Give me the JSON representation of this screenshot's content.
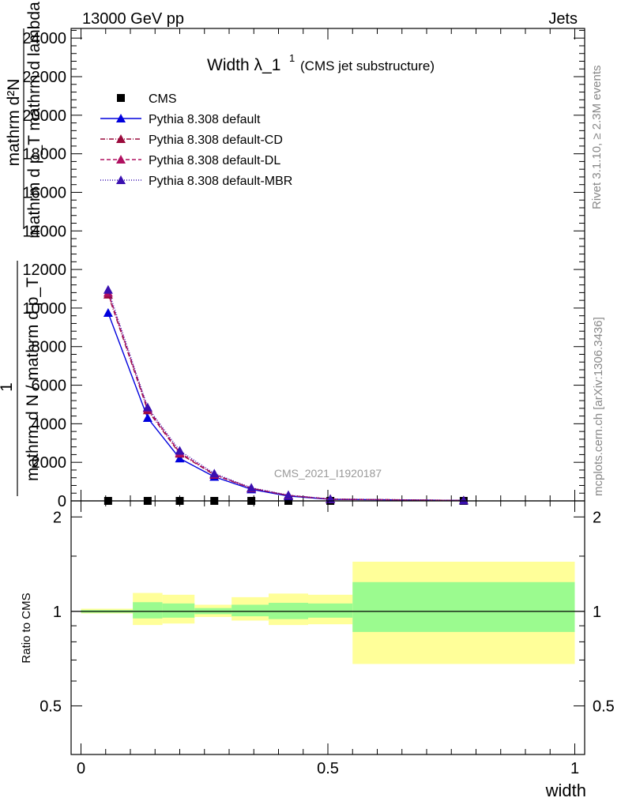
{
  "header": {
    "left": "13000 GeV pp",
    "right": "Jets"
  },
  "side_labels": {
    "rivet": "Rivet 3.1.10, ≥ 2.3M events",
    "mcplots": "mcplots.cern.ch [arXiv:1306.3436]"
  },
  "chart_data": [
    {
      "type": "line",
      "title": "Width λ_1",
      "title_sup": "1",
      "subtitle": "(CMS jet substructure)",
      "watermark": "CMS_2021_I1920187",
      "ylabel_lines": [
        "mathrm d²N",
        "mathrm d p_T mathrm d lambda",
        "1",
        "mathrm d N / mathrm d p_T"
      ],
      "ylabel_sub": "T",
      "xlim": [
        -0.02,
        1.02
      ],
      "ylim": [
        0,
        24500
      ],
      "yticks": [
        0,
        2000,
        4000,
        6000,
        8000,
        10000,
        12000,
        14000,
        16000,
        18000,
        20000,
        22000,
        24000
      ],
      "ytick_labels": [
        "0",
        "2000",
        "4000",
        "6000",
        "8000",
        "10000",
        "12000",
        "14000",
        "16000",
        "18000",
        "20000",
        "22000",
        "24000"
      ],
      "legend_position": "top-left",
      "x": [
        0.055,
        0.135,
        0.2,
        0.27,
        0.345,
        0.42,
        0.505,
        0.775
      ],
      "series": [
        {
          "name": "CMS",
          "color": "#000000",
          "marker": "square",
          "dash": "none",
          "values": [
            0,
            0,
            0,
            0,
            0,
            0,
            0,
            0
          ]
        },
        {
          "name": "Pythia 8.308 default",
          "color": "#0000dd",
          "marker": "triangle",
          "dash": "none",
          "values": [
            9750,
            4300,
            2200,
            1250,
            600,
            250,
            80,
            20
          ]
        },
        {
          "name": "Pythia 8.308 default-CD",
          "color": "#9a0a3c",
          "marker": "triangle",
          "dash": "6,2,1,2",
          "values": [
            10700,
            4700,
            2450,
            1350,
            650,
            280,
            90,
            22
          ]
        },
        {
          "name": "Pythia 8.308 default-DL",
          "color": "#b01060",
          "marker": "triangle",
          "dash": "5,3",
          "values": [
            10800,
            4800,
            2500,
            1380,
            660,
            285,
            92,
            22
          ]
        },
        {
          "name": "Pythia 8.308 default-MBR",
          "color": "#3a10b0",
          "marker": "triangle",
          "dash": "1,2",
          "values": [
            10950,
            4850,
            2600,
            1420,
            680,
            300,
            95,
            23
          ]
        }
      ]
    },
    {
      "type": "area",
      "ylabel": "Ratio to CMS",
      "xlabel": "width",
      "xlim": [
        -0.02,
        1.02
      ],
      "ylim": [
        0.35,
        2.25
      ],
      "yticks": [
        0.5,
        1,
        2
      ],
      "ytick_labels": [
        "0.5",
        "1",
        "2"
      ],
      "xticks": [
        0,
        0.5,
        1
      ],
      "xtick_labels": [
        "0",
        "0.5",
        "1"
      ],
      "bands": [
        {
          "x0": 0.0,
          "x1": 0.105,
          "stat": [
            0.99,
            1.01
          ],
          "total": [
            0.985,
            1.02
          ]
        },
        {
          "x0": 0.105,
          "x1": 0.165,
          "stat": [
            0.95,
            1.07
          ],
          "total": [
            0.905,
            1.145
          ]
        },
        {
          "x0": 0.165,
          "x1": 0.23,
          "stat": [
            0.955,
            1.06
          ],
          "total": [
            0.915,
            1.13
          ]
        },
        {
          "x0": 0.23,
          "x1": 0.305,
          "stat": [
            0.98,
            1.025
          ],
          "total": [
            0.96,
            1.05
          ]
        },
        {
          "x0": 0.305,
          "x1": 0.38,
          "stat": [
            0.965,
            1.05
          ],
          "total": [
            0.935,
            1.11
          ]
        },
        {
          "x0": 0.38,
          "x1": 0.46,
          "stat": [
            0.945,
            1.065
          ],
          "total": [
            0.905,
            1.14
          ]
        },
        {
          "x0": 0.46,
          "x1": 0.55,
          "stat": [
            0.955,
            1.06
          ],
          "total": [
            0.91,
            1.13
          ]
        },
        {
          "x0": 0.55,
          "x1": 1.0,
          "stat": [
            0.86,
            1.24
          ],
          "total": [
            0.68,
            1.44
          ]
        }
      ],
      "stat_color": "#9bfb8f",
      "total_color": "#ffff99"
    }
  ]
}
